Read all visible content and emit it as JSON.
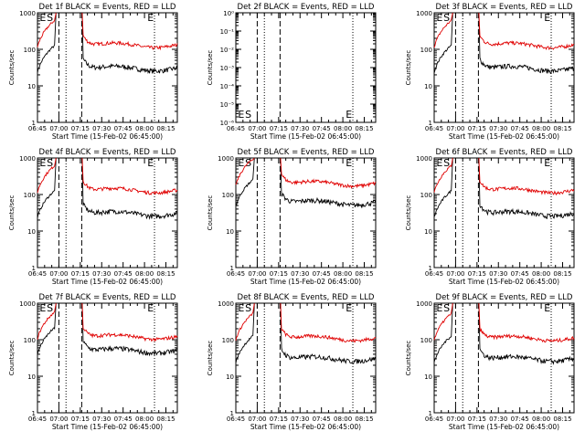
{
  "page": {
    "background": "#ffffff"
  },
  "colors": {
    "events": "#000000",
    "lld": "#e00000",
    "axis": "#000000"
  },
  "common": {
    "xlabel": "Start Time (15-Feb-02 06:45:00)",
    "ylabel": "Counts/sec",
    "x_ticks": [
      "06:45",
      "07:00",
      "07:15",
      "07:30",
      "07:45",
      "08:00",
      "08:15"
    ]
  },
  "chart_data": [
    {
      "type": "line",
      "title": "Det 1f BLACK = Events, RED = LLD",
      "yscale": "log",
      "ylim": [
        1,
        1000
      ],
      "y_ticks": [
        "1",
        "10",
        "100",
        "1000"
      ],
      "xlim": [
        "06:45",
        "08:23"
      ],
      "x": "time (min after 06:45)",
      "letters": [
        "E",
        "S",
        "E"
      ],
      "series": [
        {
          "name": "Events",
          "color": "#000000",
          "base": 30
        },
        {
          "name": "LLD",
          "color": "#e00000",
          "base": 130
        }
      ]
    },
    {
      "type": "line",
      "title": "Det 2f BLACK = Events, RED = LLD",
      "yscale": "log",
      "ylim": [
        1e-06,
        1
      ],
      "y_ticks": [
        "10⁰",
        "10⁻¹",
        "10⁻²",
        "10⁻³",
        "10⁻⁴",
        "10⁻⁵",
        "10⁻⁶"
      ],
      "xlim": [
        "06:45",
        "08:23"
      ],
      "x": "time (min after 06:45)",
      "letters": [
        "E",
        "S",
        "E"
      ],
      "series": []
    },
    {
      "type": "line",
      "title": "Det 3f BLACK = Events, RED = LLD",
      "yscale": "log",
      "ylim": [
        1,
        1000
      ],
      "y_ticks": [
        "1",
        "10",
        "100",
        "1000"
      ],
      "xlim": [
        "06:45",
        "08:23"
      ],
      "x": "time (min after 06:45)",
      "letters": [
        "E",
        "S",
        "E"
      ],
      "series": [
        {
          "name": "Events",
          "color": "#000000",
          "base": 30
        },
        {
          "name": "LLD",
          "color": "#e00000",
          "base": 130
        }
      ]
    },
    {
      "type": "line",
      "title": "Det 4f BLACK = Events, RED = LLD",
      "yscale": "log",
      "ylim": [
        1,
        1000
      ],
      "y_ticks": [
        "1",
        "10",
        "100",
        "1000"
      ],
      "xlim": [
        "06:45",
        "08:23"
      ],
      "x": "time (min after 06:45)",
      "letters": [
        "E",
        "S",
        "E"
      ],
      "series": [
        {
          "name": "Events",
          "color": "#000000",
          "base": 30
        },
        {
          "name": "LLD",
          "color": "#e00000",
          "base": 130
        }
      ]
    },
    {
      "type": "line",
      "title": "Det 5f BLACK = Events, RED = LLD",
      "yscale": "log",
      "ylim": [
        1,
        1000
      ],
      "y_ticks": [
        "1",
        "10",
        "100",
        "1000"
      ],
      "xlim": [
        "06:45",
        "08:23"
      ],
      "x": "time (min after 06:45)",
      "letters": [
        "E",
        "S",
        "E"
      ],
      "series": [
        {
          "name": "Events",
          "color": "#000000",
          "base": 60
        },
        {
          "name": "LLD",
          "color": "#e00000",
          "base": 200
        }
      ]
    },
    {
      "type": "line",
      "title": "Det 6f BLACK = Events, RED = LLD",
      "yscale": "log",
      "ylim": [
        1,
        1000
      ],
      "y_ticks": [
        "1",
        "10",
        "100",
        "1000"
      ],
      "xlim": [
        "06:45",
        "08:23"
      ],
      "x": "time (min after 06:45)",
      "letters": [
        "E",
        "S",
        "E"
      ],
      "series": [
        {
          "name": "Events",
          "color": "#000000",
          "base": 30
        },
        {
          "name": "LLD",
          "color": "#e00000",
          "base": 130
        }
      ]
    },
    {
      "type": "line",
      "title": "Det 7f BLACK = Events, RED = LLD",
      "yscale": "log",
      "ylim": [
        1,
        1000
      ],
      "y_ticks": [
        "1",
        "10",
        "100",
        "1000"
      ],
      "xlim": [
        "06:45",
        "08:23"
      ],
      "x": "time (min after 06:45)",
      "letters": [
        "E",
        "S",
        "E"
      ],
      "series": [
        {
          "name": "Events",
          "color": "#000000",
          "base": 50
        },
        {
          "name": "LLD",
          "color": "#e00000",
          "base": 120
        }
      ]
    },
    {
      "type": "line",
      "title": "Det 8f BLACK = Events, RED = LLD",
      "yscale": "log",
      "ylim": [
        1,
        1000
      ],
      "y_ticks": [
        "1",
        "10",
        "100",
        "1000"
      ],
      "xlim": [
        "06:45",
        "08:23"
      ],
      "x": "time (min after 06:45)",
      "letters": [
        "E",
        "S",
        "E"
      ],
      "series": [
        {
          "name": "Events",
          "color": "#000000",
          "base": 30
        },
        {
          "name": "LLD",
          "color": "#e00000",
          "base": 110
        }
      ]
    },
    {
      "type": "line",
      "title": "Det 9f BLACK = Events, RED = LLD",
      "yscale": "log",
      "ylim": [
        1,
        1000
      ],
      "y_ticks": [
        "1",
        "10",
        "100",
        "1000"
      ],
      "xlim": [
        "06:45",
        "08:23"
      ],
      "x": "time (min after 06:45)",
      "letters": [
        "E",
        "S",
        "E"
      ],
      "series": [
        {
          "name": "Events",
          "color": "#000000",
          "base": 30
        },
        {
          "name": "LLD",
          "color": "#e00000",
          "base": 110
        }
      ]
    }
  ]
}
